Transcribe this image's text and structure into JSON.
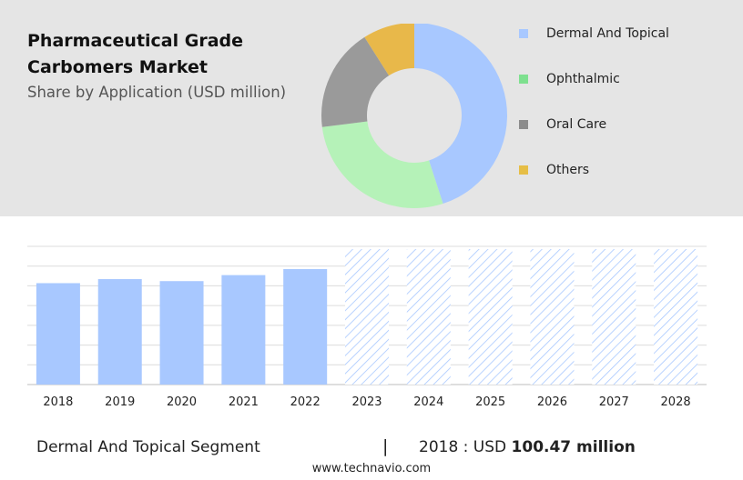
{
  "header": {
    "title": "Pharmaceutical Grade Carbomers Market",
    "subtitle": "Share by Application (USD million)"
  },
  "legend": {
    "items": [
      {
        "label": "Dermal And Topical",
        "color": "#a8c8ff"
      },
      {
        "label": "Ophthalmic",
        "color": "#7ee08f"
      },
      {
        "label": "Oral Care",
        "color": "#8c8c8c"
      },
      {
        "label": "Others",
        "color": "#e6be46"
      }
    ]
  },
  "footer": {
    "segment": "Dermal And Topical Segment",
    "separator": "|",
    "value_prefix": "2018 : USD",
    "value_bold": "100.47 million",
    "source": "www.technavio.com"
  },
  "chart_data": [
    {
      "type": "pie",
      "labels": [
        "Dermal And Topical",
        "Ophthalmic",
        "Oral Care",
        "Others"
      ],
      "values": [
        45,
        28,
        18,
        9
      ],
      "colors": [
        "#a8c8ff",
        "#b5f2b8",
        "#9a9a9a",
        "#e8b84a"
      ]
    },
    {
      "type": "bar",
      "categories": [
        "2018",
        "2019",
        "2020",
        "2021",
        "2022",
        "2023",
        "2024",
        "2025",
        "2026",
        "2027",
        "2028"
      ],
      "values": [
        100.47,
        104.5,
        102.5,
        108.5,
        114.5,
        null,
        null,
        null,
        null,
        null,
        null
      ],
      "forecast_categories": [
        "2023",
        "2024",
        "2025",
        "2026",
        "2027",
        "2028"
      ],
      "grid": true,
      "colors": {
        "bar": "#a8c8ff",
        "forecast": "#a8c8ff"
      }
    }
  ]
}
